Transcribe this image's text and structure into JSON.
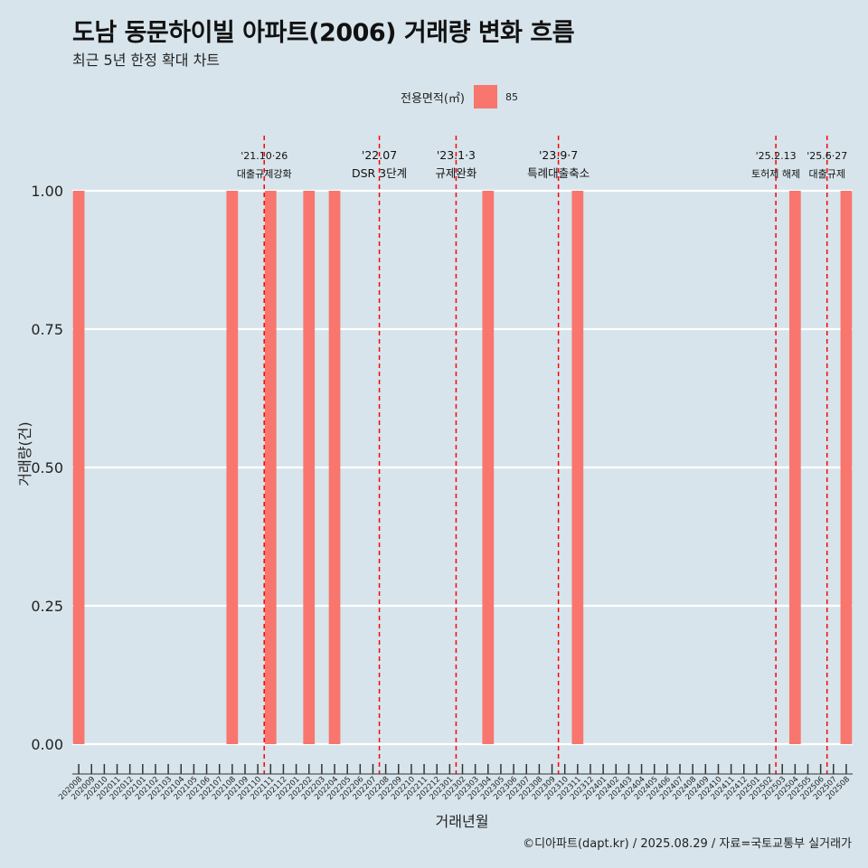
{
  "title": "도남 동문하이빌 아파트(2006) 거래량 변화 흐름",
  "subtitle": "최근 5년 한정 확대 차트",
  "legend": {
    "title": "전용면적(㎡)",
    "label": "85"
  },
  "caption": "©디아파트(dapt.kr) / 2025.08.29 / 자료=국토교통부 실거래가",
  "colors": {
    "background": "#d7e4eb",
    "bar": "#f8766d",
    "grid": "#ffffff",
    "event_line": "#ff0000"
  },
  "chart_data": {
    "type": "bar",
    "xlabel": "거래년월",
    "ylabel": "거래량(건)",
    "ylim": [
      0,
      1
    ],
    "yticks": [
      "0.00",
      "0.25",
      "0.50",
      "0.75",
      "1.00"
    ],
    "categories": [
      "202008",
      "202009",
      "202010",
      "202011",
      "202012",
      "202101",
      "202102",
      "202103",
      "202104",
      "202105",
      "202106",
      "202107",
      "202108",
      "202109",
      "202110",
      "202111",
      "202112",
      "202201",
      "202202",
      "202203",
      "202204",
      "202205",
      "202206",
      "202207",
      "202208",
      "202209",
      "202210",
      "202211",
      "202212",
      "202301",
      "202302",
      "202303",
      "202304",
      "202305",
      "202306",
      "202307",
      "202308",
      "202309",
      "202310",
      "202311",
      "202312",
      "202401",
      "202402",
      "202403",
      "202404",
      "202405",
      "202406",
      "202407",
      "202408",
      "202409",
      "202410",
      "202411",
      "202412",
      "202501",
      "202502",
      "202503",
      "202504",
      "202505",
      "202506",
      "202507",
      "202508"
    ],
    "series": [
      {
        "name": "85",
        "values": [
          1,
          0,
          0,
          0,
          0,
          0,
          0,
          0,
          0,
          0,
          0,
          0,
          1,
          0,
          0,
          1,
          0,
          0,
          1,
          0,
          1,
          0,
          0,
          0,
          0,
          0,
          0,
          0,
          0,
          0,
          0,
          0,
          1,
          0,
          0,
          0,
          0,
          0,
          0,
          1,
          0,
          0,
          0,
          0,
          0,
          0,
          0,
          0,
          0,
          0,
          0,
          0,
          0,
          0,
          0,
          0,
          1,
          0,
          0,
          0,
          1
        ]
      }
    ],
    "events": [
      {
        "x": 14.5,
        "date": "'21.10·26",
        "label": "대출규제강화"
      },
      {
        "x": 23.5,
        "date": "'22.07",
        "label": "DSR 3단계"
      },
      {
        "x": 29.5,
        "date": "'23.1·3",
        "label": "규제완화"
      },
      {
        "x": 37.5,
        "date": "'23.9·7",
        "label": "특례대출축소"
      },
      {
        "x": 54.5,
        "date": "'25.2.13",
        "label": "토허제 해제"
      },
      {
        "x": 58.5,
        "date": "'25.6·27",
        "label": "대출규제"
      }
    ]
  }
}
